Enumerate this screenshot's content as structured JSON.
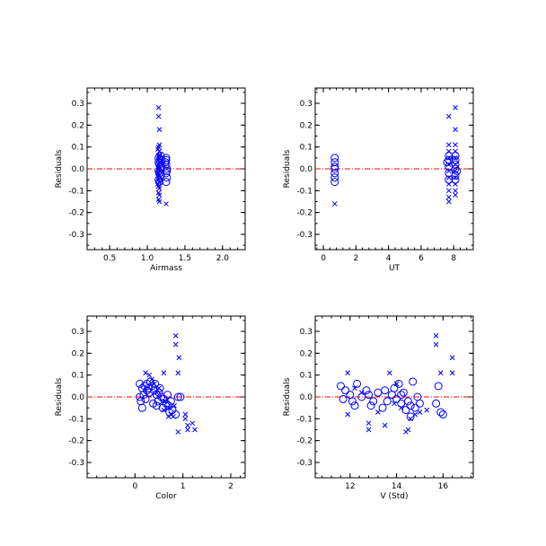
{
  "chart_data": [
    {
      "type": "scatter",
      "xlabel": "Airmass",
      "ylabel": "Residuals",
      "xlim": [
        0.2,
        2.3
      ],
      "ylim": [
        -0.37,
        0.37
      ],
      "xticks": [
        0.5,
        1.0,
        1.5,
        2.0
      ],
      "xtick_labels": [
        "0.5",
        "1.0",
        "1.5",
        "2.0"
      ],
      "yticks": [
        -0.3,
        -0.2,
        -0.1,
        0.0,
        0.1,
        0.2,
        0.3
      ],
      "ytick_labels": [
        "-0.3",
        "-0.2",
        "-0.1",
        "0.0",
        "0.1",
        "0.2",
        "0.3"
      ],
      "zero_line_color": "#ff0000",
      "marker_color": "#0000ff",
      "series": [
        {
          "marker": "x",
          "points": [
            [
              1.15,
              0.28
            ],
            [
              1.15,
              0.24
            ],
            [
              1.16,
              0.18
            ],
            [
              1.16,
              0.11
            ],
            [
              1.15,
              0.1
            ],
            [
              1.16,
              0.08
            ],
            [
              1.15,
              0.06
            ],
            [
              1.16,
              0.05
            ],
            [
              1.15,
              0.04
            ],
            [
              1.16,
              0.03
            ],
            [
              1.15,
              0.02
            ],
            [
              1.16,
              0.01
            ],
            [
              1.15,
              0.0
            ],
            [
              1.16,
              -0.01
            ],
            [
              1.15,
              -0.02
            ],
            [
              1.16,
              -0.03
            ],
            [
              1.15,
              -0.05
            ],
            [
              1.16,
              -0.06
            ],
            [
              1.15,
              -0.08
            ],
            [
              1.16,
              -0.09
            ],
            [
              1.15,
              -0.11
            ],
            [
              1.16,
              -0.12
            ],
            [
              1.15,
              -0.14
            ],
            [
              1.16,
              -0.15
            ],
            [
              1.17,
              0.06
            ],
            [
              1.17,
              -0.04
            ],
            [
              1.14,
              0.09
            ],
            [
              1.14,
              -0.07
            ],
            [
              1.25,
              -0.16
            ],
            [
              1.17,
              0.03
            ],
            [
              1.14,
              -0.02
            ]
          ]
        },
        {
          "marker": "o",
          "points": [
            [
              1.15,
              0.05
            ],
            [
              1.15,
              0.03
            ],
            [
              1.16,
              0.02
            ],
            [
              1.17,
              0.0
            ],
            [
              1.15,
              -0.01
            ],
            [
              1.16,
              -0.02
            ],
            [
              1.18,
              -0.03
            ],
            [
              1.19,
              0.04
            ],
            [
              1.15,
              -0.05
            ],
            [
              1.16,
              -0.06
            ],
            [
              1.18,
              0.06
            ],
            [
              1.19,
              0.01
            ],
            [
              1.25,
              0.04
            ],
            [
              1.25,
              0.02
            ],
            [
              1.26,
              0.0
            ],
            [
              1.25,
              -0.02
            ],
            [
              1.26,
              -0.04
            ],
            [
              1.25,
              -0.06
            ],
            [
              1.24,
              0.03
            ],
            [
              1.26,
              -0.01
            ],
            [
              1.25,
              0.05
            ]
          ]
        }
      ]
    },
    {
      "type": "scatter",
      "xlabel": "UT",
      "ylabel": "Residuals",
      "xlim": [
        -0.5,
        9.2
      ],
      "ylim": [
        -0.37,
        0.37
      ],
      "xticks": [
        0,
        2,
        4,
        6,
        8
      ],
      "xtick_labels": [
        "0",
        "2",
        "4",
        "6",
        "8"
      ],
      "yticks": [
        -0.3,
        -0.2,
        -0.1,
        0.0,
        0.1,
        0.2,
        0.3
      ],
      "ytick_labels": [
        "-0.3",
        "-0.2",
        "-0.1",
        "0.0",
        "0.1",
        "0.2",
        "0.3"
      ],
      "zero_line_color": "#ff0000",
      "marker_color": "#0000ff",
      "series": [
        {
          "marker": "x",
          "points": [
            [
              0.7,
              -0.16
            ],
            [
              7.7,
              0.24
            ],
            [
              8.1,
              0.28
            ],
            [
              8.1,
              0.18
            ],
            [
              7.7,
              0.11
            ],
            [
              7.7,
              0.08
            ],
            [
              7.7,
              0.05
            ],
            [
              7.7,
              0.02
            ],
            [
              7.7,
              -0.01
            ],
            [
              7.7,
              -0.04
            ],
            [
              7.7,
              -0.07
            ],
            [
              7.7,
              -0.1
            ],
            [
              7.7,
              -0.13
            ],
            [
              7.7,
              -0.15
            ],
            [
              8.1,
              0.11
            ],
            [
              8.1,
              0.08
            ],
            [
              8.1,
              0.05
            ],
            [
              8.1,
              0.02
            ],
            [
              8.1,
              -0.01
            ],
            [
              8.1,
              -0.04
            ],
            [
              8.1,
              -0.07
            ],
            [
              8.1,
              -0.1
            ],
            [
              8.1,
              -0.12
            ]
          ]
        },
        {
          "marker": "o",
          "points": [
            [
              0.7,
              0.05
            ],
            [
              0.7,
              0.03
            ],
            [
              0.7,
              0.01
            ],
            [
              0.7,
              0.0
            ],
            [
              0.7,
              -0.02
            ],
            [
              0.7,
              -0.04
            ],
            [
              0.7,
              -0.06
            ],
            [
              7.7,
              0.06
            ],
            [
              7.7,
              0.04
            ],
            [
              7.7,
              0.01
            ],
            [
              7.7,
              -0.02
            ],
            [
              7.7,
              -0.05
            ],
            [
              8.1,
              0.06
            ],
            [
              8.1,
              0.04
            ],
            [
              8.1,
              0.02
            ],
            [
              8.1,
              0.0
            ],
            [
              8.1,
              -0.03
            ],
            [
              8.1,
              -0.05
            ],
            [
              7.6,
              0.03
            ],
            [
              8.2,
              -0.01
            ]
          ]
        }
      ]
    },
    {
      "type": "scatter",
      "xlabel": "Color",
      "ylabel": "Residuals",
      "xlim": [
        -1.0,
        2.3
      ],
      "ylim": [
        -0.37,
        0.37
      ],
      "xticks": [
        0,
        1,
        2
      ],
      "xtick_labels": [
        "0",
        "1",
        "2"
      ],
      "yticks": [
        -0.3,
        -0.2,
        -0.1,
        0.0,
        0.1,
        0.2,
        0.3
      ],
      "ytick_labels": [
        "-0.3",
        "-0.2",
        "-0.1",
        "0.0",
        "0.1",
        "0.2",
        "0.3"
      ],
      "zero_line_color": "#ff0000",
      "marker_color": "#0000ff",
      "series": [
        {
          "marker": "x",
          "points": [
            [
              0.85,
              0.28
            ],
            [
              0.85,
              0.24
            ],
            [
              0.92,
              0.18
            ],
            [
              0.9,
              0.11
            ],
            [
              0.22,
              0.11
            ],
            [
              0.3,
              0.1
            ],
            [
              0.6,
              0.11
            ],
            [
              0.35,
              0.08
            ],
            [
              0.4,
              0.06
            ],
            [
              0.5,
              0.04
            ],
            [
              0.45,
              0.02
            ],
            [
              0.62,
              -0.02
            ],
            [
              0.7,
              -0.05
            ],
            [
              0.75,
              -0.08
            ],
            [
              0.8,
              -0.09
            ],
            [
              1.05,
              -0.08
            ],
            [
              1.05,
              -0.1
            ],
            [
              1.1,
              -0.13
            ],
            [
              1.2,
              -0.12
            ],
            [
              1.1,
              -0.15
            ],
            [
              1.25,
              -0.15
            ],
            [
              0.9,
              -0.16
            ],
            [
              0.7,
              -0.09
            ],
            [
              0.6,
              -0.06
            ],
            [
              0.82,
              -0.04
            ]
          ]
        },
        {
          "marker": "o",
          "points": [
            [
              0.1,
              0.06
            ],
            [
              0.15,
              0.04
            ],
            [
              0.2,
              0.05
            ],
            [
              0.25,
              0.03
            ],
            [
              0.3,
              0.02
            ],
            [
              0.35,
              0.05
            ],
            [
              0.4,
              0.03
            ],
            [
              0.45,
              0.01
            ],
            [
              0.5,
              0.02
            ],
            [
              0.55,
              0.0
            ],
            [
              0.6,
              -0.01
            ],
            [
              0.65,
              -0.03
            ],
            [
              0.7,
              -0.04
            ],
            [
              0.75,
              -0.02
            ],
            [
              0.78,
              -0.06
            ],
            [
              0.1,
              0.0
            ],
            [
              0.12,
              -0.02
            ],
            [
              0.18,
              0.01
            ],
            [
              0.22,
              -0.01
            ],
            [
              0.28,
              0.04
            ],
            [
              0.32,
              0.07
            ],
            [
              0.38,
              -0.03
            ],
            [
              0.42,
              0.06
            ],
            [
              0.48,
              -0.02
            ],
            [
              0.52,
              0.04
            ],
            [
              0.58,
              -0.05
            ],
            [
              0.68,
              0.01
            ],
            [
              0.72,
              -0.07
            ],
            [
              0.9,
              0.0
            ],
            [
              0.95,
              0.0
            ],
            [
              0.15,
              -0.05
            ],
            [
              0.25,
              0.06
            ],
            [
              0.45,
              -0.04
            ],
            [
              0.85,
              -0.08
            ]
          ]
        }
      ]
    },
    {
      "type": "scatter",
      "xlabel": "V (Std)",
      "ylabel": "Residuals",
      "xlim": [
        10.5,
        17.3
      ],
      "ylim": [
        -0.37,
        0.37
      ],
      "xticks": [
        12,
        14,
        16
      ],
      "xtick_labels": [
        "12",
        "14",
        "16"
      ],
      "yticks": [
        -0.3,
        -0.2,
        -0.1,
        0.0,
        0.1,
        0.2,
        0.3
      ],
      "ytick_labels": [
        "-0.3",
        "-0.2",
        "-0.1",
        "0.0",
        "0.1",
        "0.2",
        "0.3"
      ],
      "zero_line_color": "#ff0000",
      "marker_color": "#0000ff",
      "series": [
        {
          "marker": "x",
          "points": [
            [
              15.7,
              0.28
            ],
            [
              15.7,
              0.24
            ],
            [
              16.4,
              0.18
            ],
            [
              16.4,
              0.11
            ],
            [
              15.9,
              0.11
            ],
            [
              13.7,
              0.11
            ],
            [
              11.9,
              0.11
            ],
            [
              11.9,
              -0.08
            ],
            [
              12.8,
              -0.12
            ],
            [
              12.8,
              -0.15
            ],
            [
              13.2,
              -0.07
            ],
            [
              13.5,
              -0.13
            ],
            [
              14.4,
              -0.16
            ],
            [
              14.5,
              -0.15
            ],
            [
              14.6,
              -0.1
            ],
            [
              14.8,
              -0.08
            ],
            [
              15.0,
              -0.07
            ],
            [
              14.2,
              -0.05
            ],
            [
              13.9,
              -0.03
            ],
            [
              12.2,
              0.04
            ],
            [
              12.5,
              0.02
            ],
            [
              15.3,
              -0.06
            ],
            [
              14.0,
              0.06
            ]
          ]
        },
        {
          "marker": "o",
          "points": [
            [
              11.6,
              0.05
            ],
            [
              11.8,
              0.03
            ],
            [
              12.0,
              0.01
            ],
            [
              12.1,
              -0.02
            ],
            [
              12.2,
              -0.04
            ],
            [
              12.3,
              0.06
            ],
            [
              12.5,
              0.0
            ],
            [
              12.7,
              0.03
            ],
            [
              12.8,
              0.01
            ],
            [
              13.0,
              -0.02
            ],
            [
              13.2,
              0.02
            ],
            [
              13.4,
              -0.05
            ],
            [
              13.5,
              0.03
            ],
            [
              13.6,
              -0.02
            ],
            [
              13.8,
              0.01
            ],
            [
              13.9,
              0.04
            ],
            [
              14.0,
              -0.01
            ],
            [
              14.1,
              0.06
            ],
            [
              14.2,
              -0.03
            ],
            [
              14.3,
              0.02
            ],
            [
              14.4,
              -0.06
            ],
            [
              14.5,
              -0.02
            ],
            [
              14.6,
              -0.04
            ],
            [
              14.7,
              0.07
            ],
            [
              14.8,
              -0.05
            ],
            [
              14.9,
              0.0
            ],
            [
              15.0,
              -0.03
            ],
            [
              15.8,
              0.05
            ],
            [
              15.9,
              -0.07
            ],
            [
              16.0,
              -0.08
            ],
            [
              15.7,
              -0.03
            ],
            [
              11.7,
              -0.01
            ],
            [
              12.9,
              -0.04
            ],
            [
              14.2,
              0.01
            ],
            [
              14.6,
              -0.09
            ]
          ]
        }
      ]
    }
  ]
}
